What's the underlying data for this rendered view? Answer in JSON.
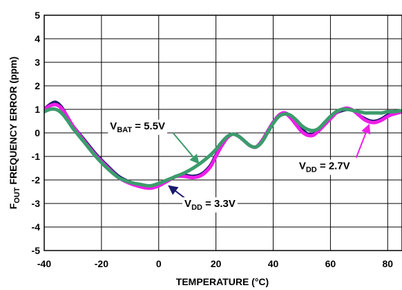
{
  "chart_data": {
    "type": "line",
    "title": "",
    "xlabel": "TEMPERATURE (°C)",
    "ylabel": {
      "parts": [
        {
          "text": "F",
          "sub": false
        },
        {
          "text": "OUT",
          "sub": true
        },
        {
          "text": " FREQUENCY ERROR (ppm)",
          "sub": false
        }
      ]
    },
    "xlim": [
      -40,
      85
    ],
    "ylim": [
      -5,
      5
    ],
    "xticks": [
      -40,
      -20,
      0,
      20,
      40,
      60,
      80
    ],
    "yticks": [
      -5,
      -4,
      -3,
      -2,
      -1,
      0,
      1,
      2,
      3,
      4,
      5
    ],
    "grid": true,
    "series": [
      {
        "key": "vdd33",
        "color": "#1a1a6e",
        "x": [
          -40,
          -38,
          -36,
          -34,
          -32,
          -30,
          -26,
          -22,
          -18,
          -14,
          -10,
          -6,
          -3,
          0,
          3,
          6,
          9,
          12,
          15,
          18,
          20,
          22,
          24,
          26,
          28,
          30,
          32,
          34,
          36,
          38,
          40,
          42,
          44,
          46,
          48,
          50,
          52,
          54,
          56,
          58,
          60,
          62,
          64,
          66,
          68,
          70,
          72,
          74,
          76,
          78,
          80,
          82,
          85
        ],
        "y": [
          1.0,
          1.2,
          1.3,
          1.1,
          0.7,
          0.3,
          -0.3,
          -0.9,
          -1.4,
          -1.85,
          -2.1,
          -2.25,
          -2.3,
          -2.2,
          -2.05,
          -1.85,
          -1.8,
          -1.85,
          -1.75,
          -1.4,
          -0.95,
          -0.55,
          -0.2,
          -0.05,
          -0.15,
          -0.35,
          -0.55,
          -0.6,
          -0.35,
          0.05,
          0.45,
          0.75,
          0.85,
          0.7,
          0.4,
          0.15,
          -0.05,
          -0.05,
          0.15,
          0.4,
          0.65,
          0.85,
          0.95,
          1.0,
          0.95,
          0.75,
          0.6,
          0.5,
          0.5,
          0.6,
          0.75,
          0.8,
          0.9
        ]
      },
      {
        "key": "vdd27",
        "color": "#ee1ee8",
        "x": [
          -40,
          -38,
          -36,
          -34,
          -32,
          -30,
          -26,
          -22,
          -18,
          -14,
          -10,
          -6,
          -3,
          0,
          3,
          6,
          9,
          12,
          15,
          18,
          20,
          22,
          24,
          26,
          28,
          30,
          32,
          34,
          36,
          38,
          40,
          42,
          44,
          46,
          48,
          50,
          52,
          54,
          56,
          58,
          60,
          62,
          64,
          66,
          68,
          70,
          72,
          74,
          76,
          78,
          80,
          82,
          85
        ],
        "y": [
          1.0,
          1.15,
          1.2,
          1.05,
          0.7,
          0.3,
          -0.35,
          -0.95,
          -1.45,
          -1.9,
          -2.15,
          -2.3,
          -2.35,
          -2.25,
          -2.05,
          -1.85,
          -1.85,
          -1.9,
          -1.8,
          -1.45,
          -1.0,
          -0.55,
          -0.2,
          -0.05,
          -0.15,
          -0.35,
          -0.55,
          -0.6,
          -0.35,
          0.05,
          0.45,
          0.75,
          0.85,
          0.65,
          0.35,
          0.05,
          -0.1,
          -0.1,
          0.1,
          0.35,
          0.6,
          0.85,
          1.0,
          1.05,
          0.95,
          0.75,
          0.55,
          0.45,
          0.45,
          0.55,
          0.7,
          0.8,
          0.9
        ]
      },
      {
        "key": "vbat55",
        "color": "#3c9c6c",
        "x": [
          -40,
          -38,
          -36,
          -34,
          -32,
          -30,
          -26,
          -22,
          -18,
          -14,
          -10,
          -6,
          -3,
          0,
          3,
          6,
          9,
          12,
          15,
          18,
          20,
          22,
          24,
          26,
          28,
          30,
          32,
          34,
          36,
          38,
          40,
          42,
          44,
          46,
          48,
          50,
          52,
          54,
          56,
          58,
          60,
          62,
          64,
          66,
          68,
          70,
          72,
          74,
          76,
          78,
          80,
          82,
          85
        ],
        "y": [
          0.9,
          1.0,
          1.0,
          0.85,
          0.55,
          0.2,
          -0.4,
          -1.0,
          -1.5,
          -1.9,
          -2.1,
          -2.2,
          -2.25,
          -2.15,
          -2.0,
          -1.85,
          -1.7,
          -1.5,
          -1.25,
          -0.95,
          -0.7,
          -0.4,
          -0.15,
          -0.05,
          -0.15,
          -0.35,
          -0.55,
          -0.6,
          -0.4,
          0.0,
          0.4,
          0.7,
          0.8,
          0.75,
          0.55,
          0.3,
          0.15,
          0.1,
          0.2,
          0.45,
          0.7,
          0.9,
          1.0,
          1.0,
          0.95,
          0.9,
          0.85,
          0.85,
          0.85,
          0.85,
          0.9,
          0.9,
          0.95
        ]
      }
    ],
    "annotations": [
      {
        "key": "vbat",
        "series": "vbat55",
        "color": "#3c9c6c",
        "parts": [
          {
            "text": "V",
            "sub": false
          },
          {
            "text": "BAT",
            "sub": true
          },
          {
            "text": " = 5.5V",
            "sub": false
          }
        ],
        "label_x": -17,
        "label_y": 0.15,
        "arrow_from": [
          5,
          0.0
        ],
        "arrow_to": [
          14,
          -1.3
        ]
      },
      {
        "key": "vdd33",
        "series": "vdd33",
        "color": "#1a1a6e",
        "parts": [
          {
            "text": "V",
            "sub": false
          },
          {
            "text": "DD",
            "sub": true
          },
          {
            "text": " = 3.3V",
            "sub": false
          }
        ],
        "label_x": 9,
        "label_y": -3.15,
        "arrow_from": [
          10,
          -2.85
        ],
        "arrow_to": [
          3.5,
          -2.25
        ]
      },
      {
        "key": "vdd27",
        "series": "vdd27",
        "color": "#ee1ee8",
        "parts": [
          {
            "text": "V",
            "sub": false
          },
          {
            "text": "DD",
            "sub": true
          },
          {
            "text": " = 2.7V",
            "sub": false
          }
        ],
        "label_x": 49,
        "label_y": -1.55,
        "arrow_from": [
          69,
          -1.05
        ],
        "arrow_to": [
          73.5,
          0.35
        ]
      }
    ]
  }
}
